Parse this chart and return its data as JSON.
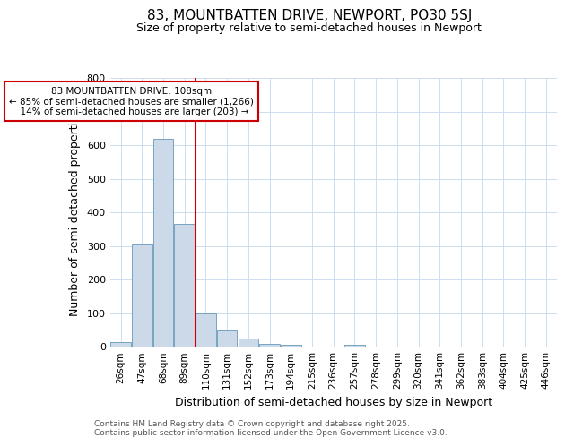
{
  "title1": "83, MOUNTBATTEN DRIVE, NEWPORT, PO30 5SJ",
  "title2": "Size of property relative to semi-detached houses in Newport",
  "xlabel": "Distribution of semi-detached houses by size in Newport",
  "ylabel": "Number of semi-detached properties",
  "bin_labels": [
    "26sqm",
    "47sqm",
    "68sqm",
    "89sqm",
    "110sqm",
    "131sqm",
    "152sqm",
    "173sqm",
    "194sqm",
    "215sqm",
    "236sqm",
    "257sqm",
    "278sqm",
    "299sqm",
    "320sqm",
    "341sqm",
    "362sqm",
    "383sqm",
    "404sqm",
    "425sqm",
    "446sqm"
  ],
  "bar_heights": [
    13,
    303,
    619,
    366,
    100,
    47,
    24,
    9,
    5,
    0,
    0,
    6,
    0,
    0,
    0,
    0,
    0,
    0,
    0,
    0,
    0
  ],
  "bar_color": "#ccd9e8",
  "bar_edge_color": "#6699bb",
  "vline_x": 4,
  "vline_color": "#cc0000",
  "annotation_line1": "83 MOUNTBATTEN DRIVE: 108sqm",
  "annotation_line2": "← 85% of semi-detached houses are smaller (1,266)",
  "annotation_line3": "  14% of semi-detached houses are larger (203) →",
  "annotation_box_facecolor": "#ffffff",
  "annotation_box_edgecolor": "#cc0000",
  "ylim": [
    0,
    800
  ],
  "yticks": [
    0,
    100,
    200,
    300,
    400,
    500,
    600,
    700,
    800
  ],
  "footnote1": "Contains HM Land Registry data © Crown copyright and database right 2025.",
  "footnote2": "Contains public sector information licensed under the Open Government Licence v3.0.",
  "bg_color": "#ffffff",
  "plot_bg_color": "#ffffff",
  "grid_color": "#ccddee"
}
